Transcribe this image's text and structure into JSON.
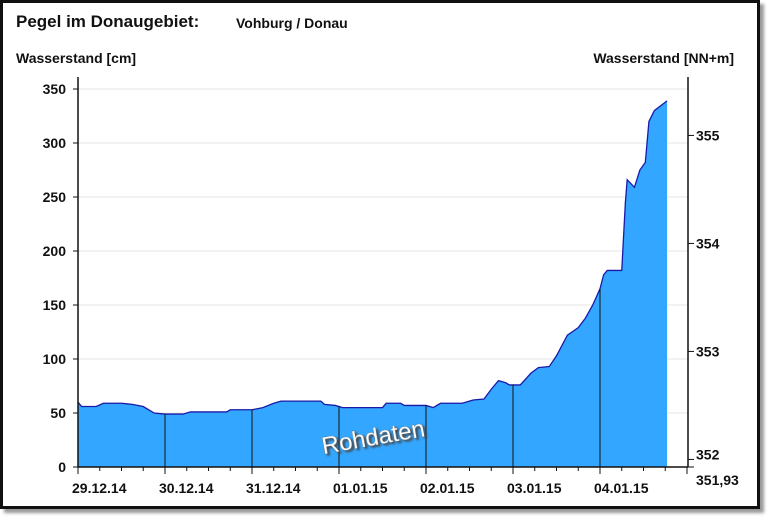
{
  "header": {
    "title": "Pegel im Donaugebiet:",
    "station": "Vohburg / Donau"
  },
  "chart_data": {
    "type": "area",
    "ylabel_left": "Wasserstand [cm]",
    "ylabel_right": "Wasserstand [NN+m]",
    "watermark": "Rohdaten",
    "ylim": [
      0,
      350
    ],
    "yticks_left": [
      "0",
      "50",
      "100",
      "150",
      "200",
      "250",
      "300",
      "350"
    ],
    "right_axis": {
      "zero_level": 351.93,
      "zero_label": "351,93",
      "ticks": [
        "352",
        "353",
        "354",
        "355"
      ]
    },
    "xlim": [
      "29.12.14 00:00",
      "05.01.15 00:00"
    ],
    "xticks": [
      "29.12.14",
      "30.12.14",
      "31.12.14",
      "01.01.15",
      "02.01.15",
      "03.01.15",
      "04.01.15"
    ],
    "grid": "horizontal",
    "colors": {
      "fill": "#33a6ff",
      "line": "#1a1aa8",
      "grid": "#e6e6e6"
    },
    "points": [
      [
        "29.12.14 00:00",
        60
      ],
      [
        "29.12.14 01:00",
        56
      ],
      [
        "29.12.14 05:00",
        56
      ],
      [
        "29.12.14 07:00",
        59
      ],
      [
        "29.12.14 12:00",
        59
      ],
      [
        "29.12.14 15:00",
        58
      ],
      [
        "29.12.14 18:00",
        56
      ],
      [
        "29.12.14 21:00",
        50
      ],
      [
        "30.12.14 00:00",
        49
      ],
      [
        "30.12.14 05:00",
        49
      ],
      [
        "30.12.14 07:00",
        51
      ],
      [
        "30.12.14 17:00",
        51
      ],
      [
        "30.12.14 18:00",
        53
      ],
      [
        "31.12.14 00:00",
        53
      ],
      [
        "31.12.14 03:00",
        55
      ],
      [
        "31.12.14 06:00",
        59
      ],
      [
        "31.12.14 08:00",
        61
      ],
      [
        "31.12.14 19:00",
        61
      ],
      [
        "31.12.14 20:00",
        58
      ],
      [
        "31.12.14 23:00",
        57
      ],
      [
        "01.01.15 01:00",
        55
      ],
      [
        "01.01.15 12:00",
        55
      ],
      [
        "01.01.15 13:00",
        59
      ],
      [
        "01.01.15 17:00",
        59
      ],
      [
        "01.01.15 18:00",
        57
      ],
      [
        "02.01.15 00:00",
        57
      ],
      [
        "02.01.15 02:00",
        55
      ],
      [
        "02.01.15 04:00",
        59
      ],
      [
        "02.01.15 10:00",
        59
      ],
      [
        "02.01.15 13:00",
        62
      ],
      [
        "02.01.15 16:00",
        63
      ],
      [
        "02.01.15 18:00",
        72
      ],
      [
        "02.01.15 20:00",
        80
      ],
      [
        "02.01.15 22:00",
        78
      ],
      [
        "02.01.15 23:00",
        76
      ],
      [
        "03.01.15 02:00",
        76
      ],
      [
        "03.01.15 05:00",
        87
      ],
      [
        "03.01.15 07:00",
        92
      ],
      [
        "03.01.15 10:00",
        93
      ],
      [
        "03.01.15 12:00",
        103
      ],
      [
        "03.01.15 15:00",
        122
      ],
      [
        "03.01.15 18:00",
        129
      ],
      [
        "03.01.15 20:00",
        138
      ],
      [
        "03.01.15 22:00",
        150
      ],
      [
        "04.01.15 00:00",
        165
      ],
      [
        "04.01.15 01:00",
        178
      ],
      [
        "04.01.15 02:00",
        182
      ],
      [
        "04.01.15 06:00",
        182
      ],
      [
        "04.01.15 07:00",
        245
      ],
      [
        "04.01.15 07:30",
        266
      ],
      [
        "04.01.15 09:30",
        259
      ],
      [
        "04.01.15 11:00",
        275
      ],
      [
        "04.01.15 12:30",
        282
      ],
      [
        "04.01.15 13:30",
        320
      ],
      [
        "04.01.15 15:00",
        330
      ],
      [
        "04.01.15 18:30",
        339
      ]
    ]
  }
}
